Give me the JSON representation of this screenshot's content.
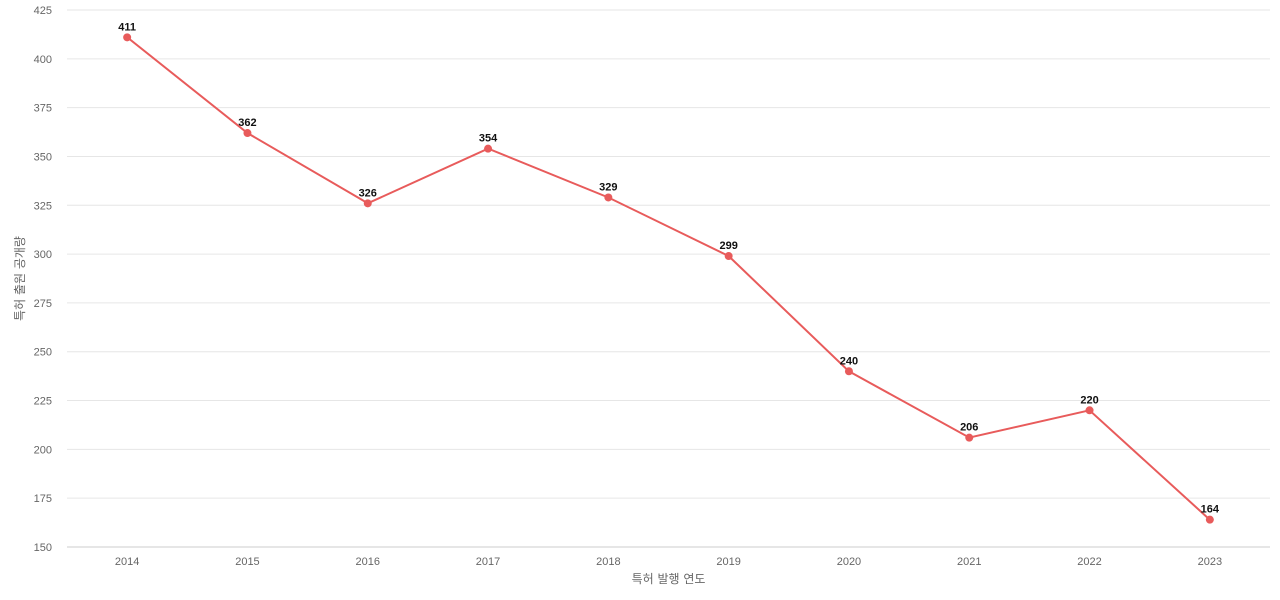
{
  "chart_data": {
    "type": "line",
    "title": "",
    "xlabel": "특허 발행 연도",
    "ylabel": "특허 출원 공개량",
    "categories": [
      "2014",
      "2015",
      "2016",
      "2017",
      "2018",
      "2019",
      "2020",
      "2021",
      "2022",
      "2023"
    ],
    "series": [
      {
        "values": [
          411,
          362,
          326,
          354,
          329,
          299,
          240,
          206,
          220,
          164
        ],
        "color": "#e85b5b"
      }
    ],
    "ylim": [
      150,
      425
    ],
    "yticks": [
      150,
      175,
      200,
      225,
      250,
      275,
      300,
      325,
      350,
      375,
      400,
      425
    ],
    "grid": true,
    "legend": "none",
    "data_labels": true
  }
}
